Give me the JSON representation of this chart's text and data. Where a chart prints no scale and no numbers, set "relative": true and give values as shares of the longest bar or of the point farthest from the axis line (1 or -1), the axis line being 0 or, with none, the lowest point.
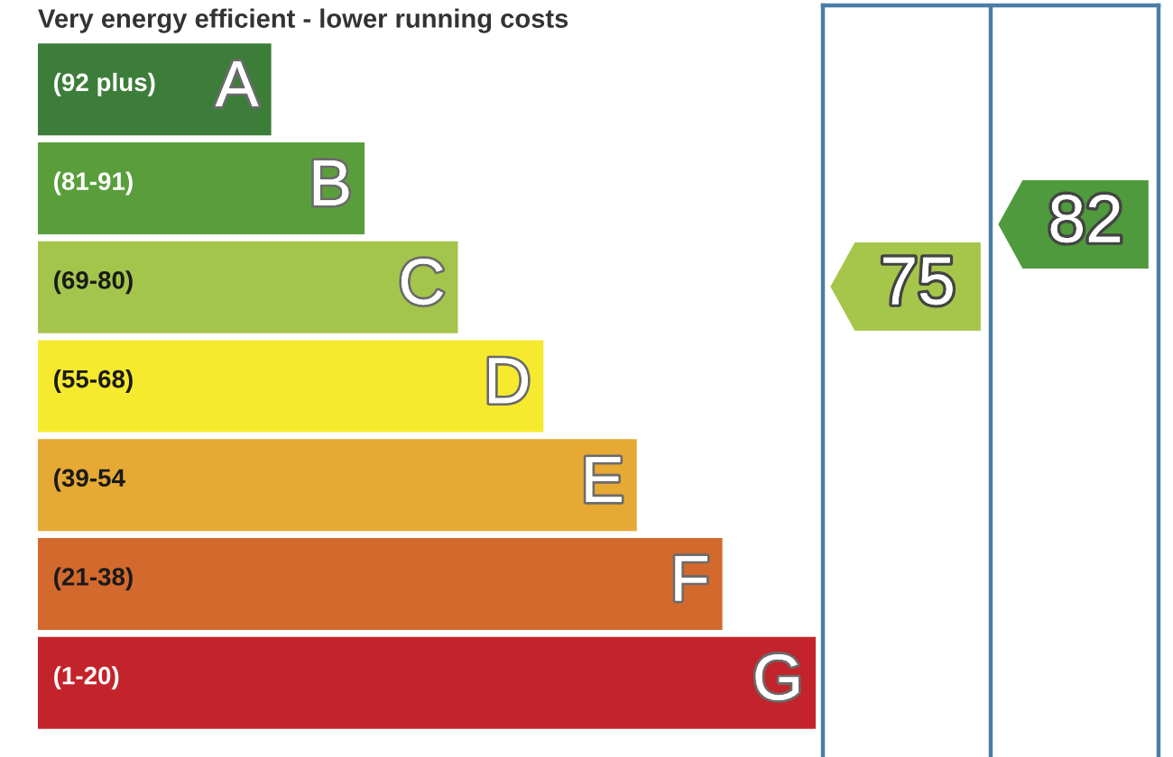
{
  "chart_data": [
    {
      "type": "bar",
      "orientation": "horizontal",
      "relative": true,
      "title": "Very energy efficient - lower running costs",
      "categories": [
        "A",
        "B",
        "C",
        "D",
        "E",
        "F",
        "G"
      ],
      "values": [
        0.3,
        0.42,
        0.54,
        0.65,
        0.77,
        0.88,
        1
      ],
      "colors": [
        "#3d7d3a",
        "#5a9e3b",
        "#a4c54b",
        "#f6ea2e",
        "#e6a933",
        "#d4692d",
        "#c3232a"
      ],
      "annotations": [
        "(92 plus)",
        "(81-91)",
        "(69-80)",
        "(55-68)",
        "(39-54",
        "(21-38)",
        "(1-20)"
      ]
    },
    {
      "type": "other",
      "annotations": [
        "75",
        "82"
      ],
      "colors": [
        "#a6c64b",
        "#4f9a3c"
      ]
    }
  ]
}
